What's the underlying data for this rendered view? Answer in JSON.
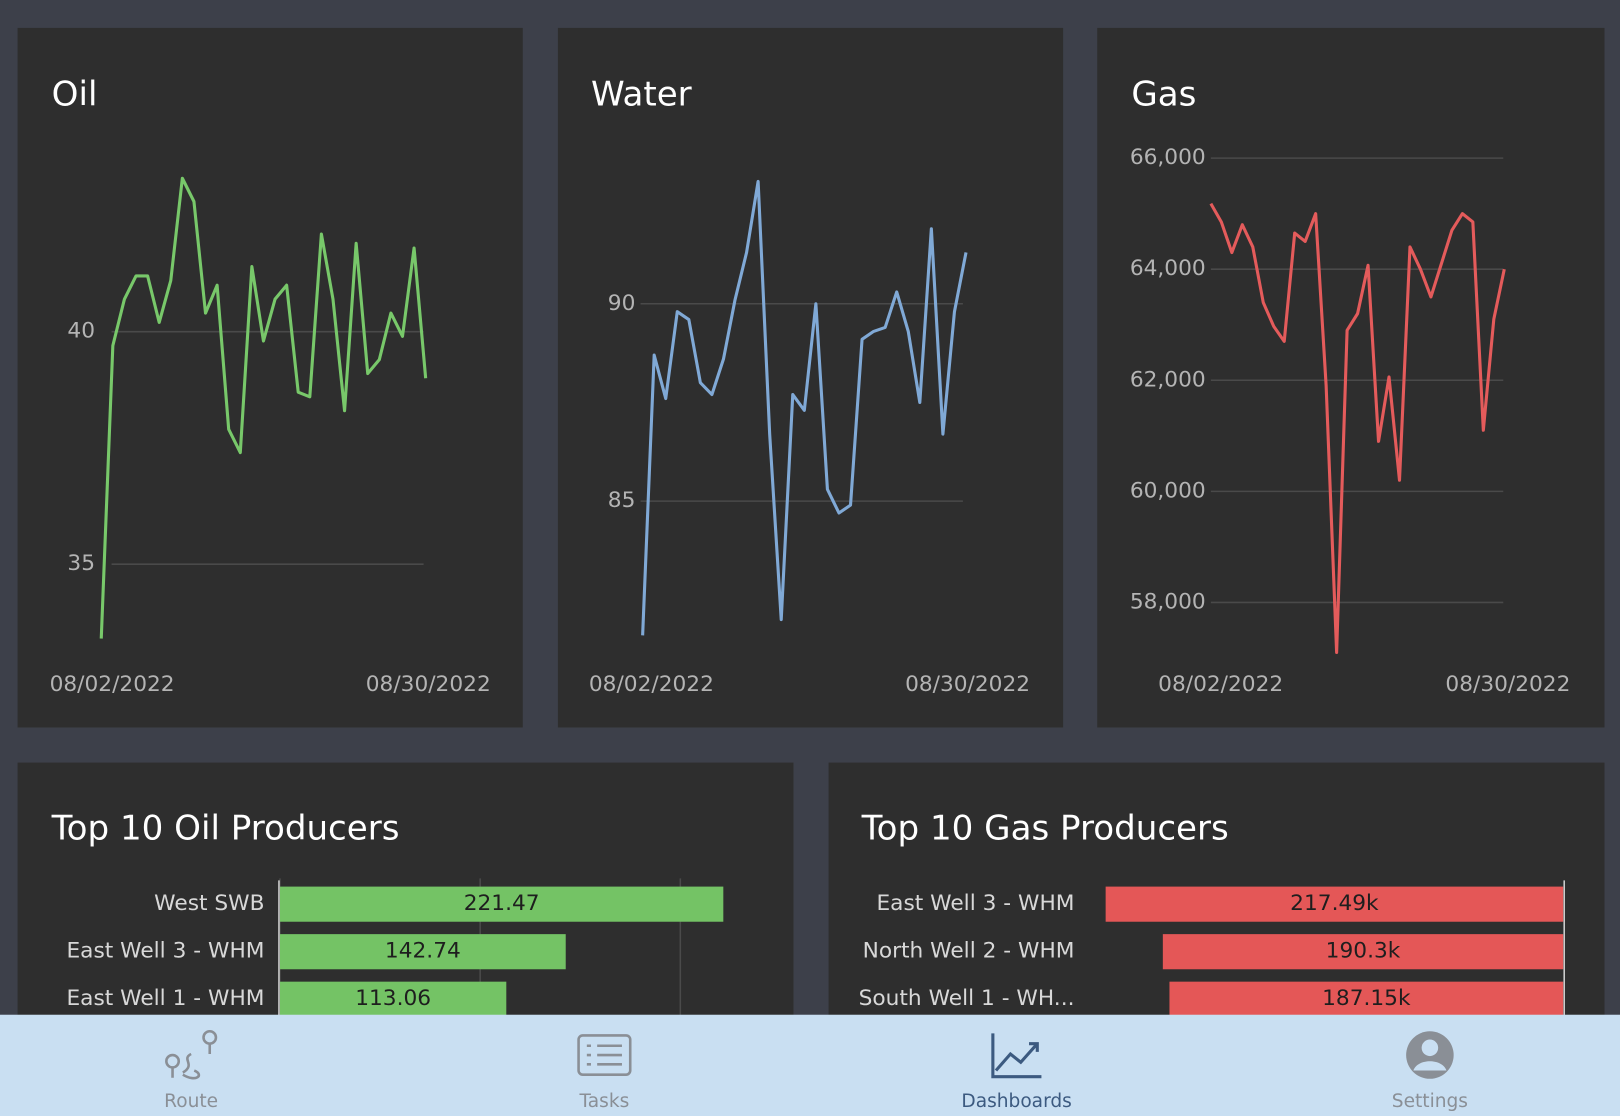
{
  "chart_data": [
    {
      "type": "line",
      "title": "Oil",
      "color": "#78c86a",
      "x": [
        "08/02/2022",
        "08/03/2022",
        "08/04/2022",
        "08/05/2022",
        "08/06/2022",
        "08/07/2022",
        "08/08/2022",
        "08/09/2022",
        "08/10/2022",
        "08/11/2022",
        "08/12/2022",
        "08/13/2022",
        "08/14/2022",
        "08/15/2022",
        "08/16/2022",
        "08/17/2022",
        "08/18/2022",
        "08/19/2022",
        "08/20/2022",
        "08/21/2022",
        "08/22/2022",
        "08/23/2022",
        "08/24/2022",
        "08/25/2022",
        "08/26/2022",
        "08/27/2022",
        "08/28/2022",
        "08/29/2022",
        "08/30/2022"
      ],
      "values": [
        33.4,
        39.7,
        40.7,
        41.2,
        41.2,
        40.2,
        41.1,
        43.3,
        42.8,
        40.4,
        41.0,
        37.9,
        37.4,
        41.4,
        39.8,
        40.7,
        41.0,
        38.7,
        38.6,
        42.1,
        40.7,
        38.3,
        41.9,
        39.1,
        39.4,
        40.4,
        39.9,
        41.8,
        39.0
      ],
      "ylim": [
        33.3,
        43.8
      ],
      "yticks": [
        35,
        40
      ],
      "grid": true
    },
    {
      "type": "line",
      "title": "Water",
      "color": "#80a9d6",
      "x": [
        "08/02/2022",
        "08/03/2022",
        "08/04/2022",
        "08/05/2022",
        "08/06/2022",
        "08/07/2022",
        "08/08/2022",
        "08/09/2022",
        "08/10/2022",
        "08/11/2022",
        "08/12/2022",
        "08/13/2022",
        "08/14/2022",
        "08/15/2022",
        "08/16/2022",
        "08/17/2022",
        "08/18/2022",
        "08/19/2022",
        "08/20/2022",
        "08/21/2022",
        "08/22/2022",
        "08/23/2022",
        "08/24/2022",
        "08/25/2022",
        "08/26/2022",
        "08/27/2022",
        "08/28/2022",
        "08/29/2022",
        "08/30/2022"
      ],
      "values": [
        81.6,
        88.7,
        87.6,
        89.8,
        89.6,
        88.0,
        87.7,
        88.6,
        90.1,
        91.3,
        93.1,
        86.7,
        82.0,
        87.7,
        87.3,
        90.0,
        85.3,
        84.7,
        84.9,
        89.1,
        89.3,
        89.4,
        90.3,
        89.3,
        87.5,
        91.9,
        86.7,
        89.8,
        91.3
      ],
      "ylim": [
        81.5,
        93.8
      ],
      "yticks": [
        85,
        90
      ],
      "grid": true
    },
    {
      "type": "line",
      "title": "Gas",
      "color": "#e45b5b",
      "x": [
        "08/02/2022",
        "08/03/2022",
        "08/04/2022",
        "08/05/2022",
        "08/06/2022",
        "08/07/2022",
        "08/08/2022",
        "08/09/2022",
        "08/10/2022",
        "08/11/2022",
        "08/12/2022",
        "08/13/2022",
        "08/14/2022",
        "08/15/2022",
        "08/16/2022",
        "08/17/2022",
        "08/18/2022",
        "08/19/2022",
        "08/20/2022",
        "08/21/2022",
        "08/22/2022",
        "08/23/2022",
        "08/24/2022",
        "08/25/2022",
        "08/26/2022",
        "08/27/2022",
        "08/28/2022",
        "08/29/2022",
        "08/30/2022"
      ],
      "values": [
        65180,
        64850,
        64300,
        64800,
        64400,
        63400,
        62970,
        62700,
        64650,
        64500,
        65000,
        61900,
        57100,
        62900,
        63200,
        64070,
        60900,
        62060,
        60200,
        64400,
        64000,
        63500,
        64100,
        64700,
        65000,
        64850,
        61100,
        63100,
        64000
      ],
      "ylim": [
        57000,
        66000
      ],
      "yticks": [
        {
          "value": 58000,
          "label": "58,000"
        },
        {
          "value": 60000,
          "label": "60,000"
        },
        {
          "value": 62000,
          "label": "62,000"
        },
        {
          "value": 64000,
          "label": "64,000"
        },
        {
          "value": 66000,
          "label": "66,000"
        }
      ],
      "grid": true
    },
    {
      "type": "hbar",
      "title": "Top 10 Oil Producers",
      "color": "#74c365",
      "categories": [
        "West SWB",
        "East Well 3 - WHM",
        "East Well 1 - WHM"
      ],
      "values": [
        221.47,
        142.74,
        113.06
      ],
      "xlim": [
        0,
        240
      ],
      "xticks": [
        0,
        100,
        200
      ],
      "grid": true
    },
    {
      "type": "hbar",
      "title": "Top 10 Gas Producers",
      "color": "#e45757",
      "categories": [
        "East Well 3 - WHM",
        "North Well 2 - WHM",
        "South Well 1 - WH..."
      ],
      "values": [
        217490,
        190300,
        187150
      ],
      "value_labels": [
        "217.49k",
        "190.3k",
        "187.15k"
      ],
      "xlim": [
        0,
        221000
      ],
      "x_reversed": true
    }
  ],
  "nav": {
    "items": [
      "Route",
      "Tasks",
      "Dashboards",
      "Settings"
    ],
    "active": 2
  }
}
